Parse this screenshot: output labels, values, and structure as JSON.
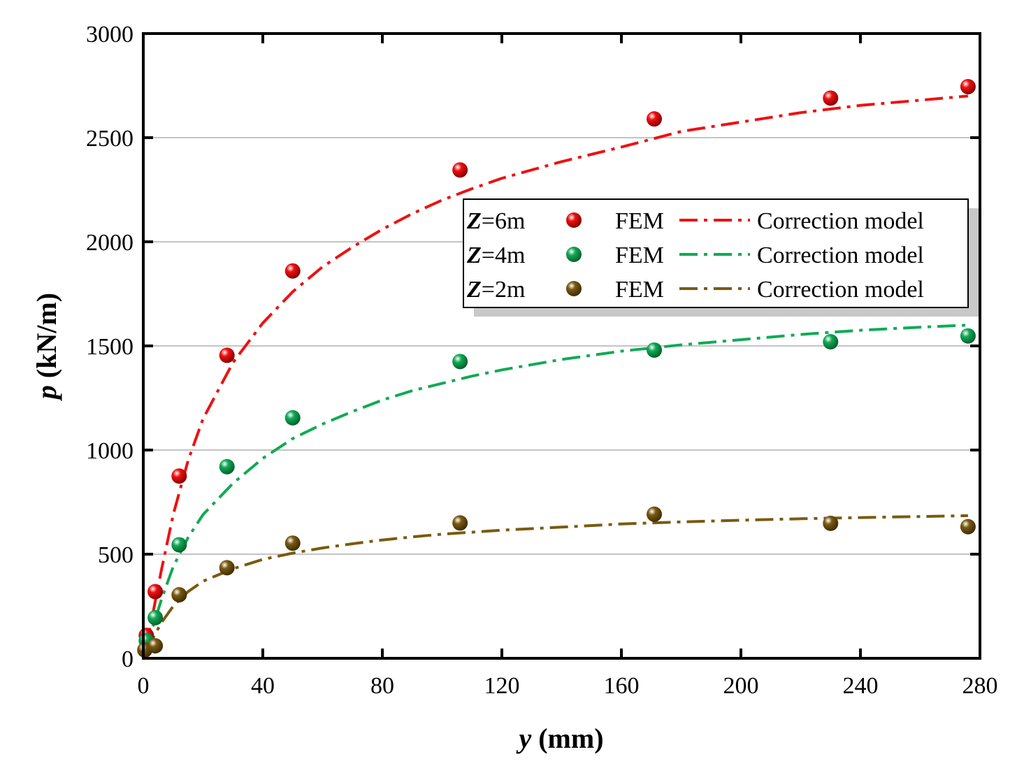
{
  "chart_data": {
    "type": "scatter",
    "title": "",
    "xlabel": {
      "var": "y",
      "unit": " (mm)"
    },
    "ylabel": {
      "var": "p",
      "unit": " (kN/m)"
    },
    "xlim": [
      0,
      280
    ],
    "ylim": [
      0,
      3000
    ],
    "xticks": [
      0,
      40,
      80,
      120,
      160,
      200,
      240,
      280
    ],
    "yticks": [
      0,
      500,
      1000,
      1500,
      2000,
      2500,
      3000
    ],
    "grid": "horizontal",
    "legend_position": "upper-right",
    "series": [
      {
        "name": "Z=6m",
        "label_var": "Z",
        "label_value": "=6m",
        "marker_label": "FEM",
        "line_label": "Correction model",
        "color": "#ee1111",
        "points": [
          [
            1,
            110
          ],
          [
            4,
            320
          ],
          [
            12,
            875
          ],
          [
            28,
            1455
          ],
          [
            50,
            1860
          ],
          [
            106,
            2345
          ],
          [
            171,
            2590
          ],
          [
            230,
            2690
          ],
          [
            276,
            2745
          ]
        ],
        "fit": [
          [
            1,
            60
          ],
          [
            3,
            200
          ],
          [
            6,
            420
          ],
          [
            10,
            690
          ],
          [
            15,
            950
          ],
          [
            20,
            1150
          ],
          [
            30,
            1420
          ],
          [
            40,
            1610
          ],
          [
            50,
            1760
          ],
          [
            60,
            1880
          ],
          [
            70,
            1975
          ],
          [
            80,
            2060
          ],
          [
            90,
            2135
          ],
          [
            100,
            2200
          ],
          [
            110,
            2255
          ],
          [
            120,
            2305
          ],
          [
            140,
            2385
          ],
          [
            160,
            2455
          ],
          [
            180,
            2530
          ],
          [
            200,
            2575
          ],
          [
            220,
            2620
          ],
          [
            240,
            2655
          ],
          [
            260,
            2680
          ],
          [
            276,
            2700
          ]
        ]
      },
      {
        "name": "Z=4m",
        "label_var": "Z",
        "label_value": "=4m",
        "marker_label": "FEM",
        "line_label": "Correction model",
        "color": "#11aa55",
        "points": [
          [
            1,
            85
          ],
          [
            4,
            195
          ],
          [
            12,
            545
          ],
          [
            28,
            920
          ],
          [
            50,
            1155
          ],
          [
            106,
            1425
          ],
          [
            171,
            1480
          ],
          [
            230,
            1520
          ],
          [
            276,
            1548
          ]
        ],
        "fit": [
          [
            1,
            40
          ],
          [
            3,
            140
          ],
          [
            6,
            280
          ],
          [
            10,
            440
          ],
          [
            15,
            580
          ],
          [
            20,
            690
          ],
          [
            30,
            840
          ],
          [
            40,
            960
          ],
          [
            50,
            1055
          ],
          [
            60,
            1125
          ],
          [
            70,
            1185
          ],
          [
            80,
            1240
          ],
          [
            90,
            1285
          ],
          [
            100,
            1320
          ],
          [
            110,
            1355
          ],
          [
            120,
            1385
          ],
          [
            140,
            1435
          ],
          [
            160,
            1475
          ],
          [
            180,
            1505
          ],
          [
            200,
            1530
          ],
          [
            220,
            1555
          ],
          [
            240,
            1575
          ],
          [
            260,
            1590
          ],
          [
            276,
            1600
          ]
        ]
      },
      {
        "name": "Z=2m",
        "label_var": "Z",
        "label_value": "=2m",
        "marker_label": "FEM",
        "line_label": "Correction model",
        "color": "#7a5a10",
        "points": [
          [
            0.5,
            40
          ],
          [
            4,
            60
          ],
          [
            12,
            305
          ],
          [
            28,
            435
          ],
          [
            50,
            553
          ],
          [
            106,
            650
          ],
          [
            171,
            692
          ],
          [
            230,
            648
          ],
          [
            276,
            632
          ]
        ],
        "fit": [
          [
            1,
            30
          ],
          [
            3,
            90
          ],
          [
            6,
            170
          ],
          [
            10,
            250
          ],
          [
            15,
            320
          ],
          [
            20,
            370
          ],
          [
            30,
            430
          ],
          [
            40,
            475
          ],
          [
            50,
            505
          ],
          [
            60,
            530
          ],
          [
            70,
            550
          ],
          [
            80,
            568
          ],
          [
            90,
            583
          ],
          [
            100,
            596
          ],
          [
            120,
            615
          ],
          [
            140,
            630
          ],
          [
            160,
            645
          ],
          [
            180,
            655
          ],
          [
            200,
            663
          ],
          [
            220,
            670
          ],
          [
            240,
            676
          ],
          [
            260,
            681
          ],
          [
            276,
            685
          ]
        ]
      }
    ]
  }
}
